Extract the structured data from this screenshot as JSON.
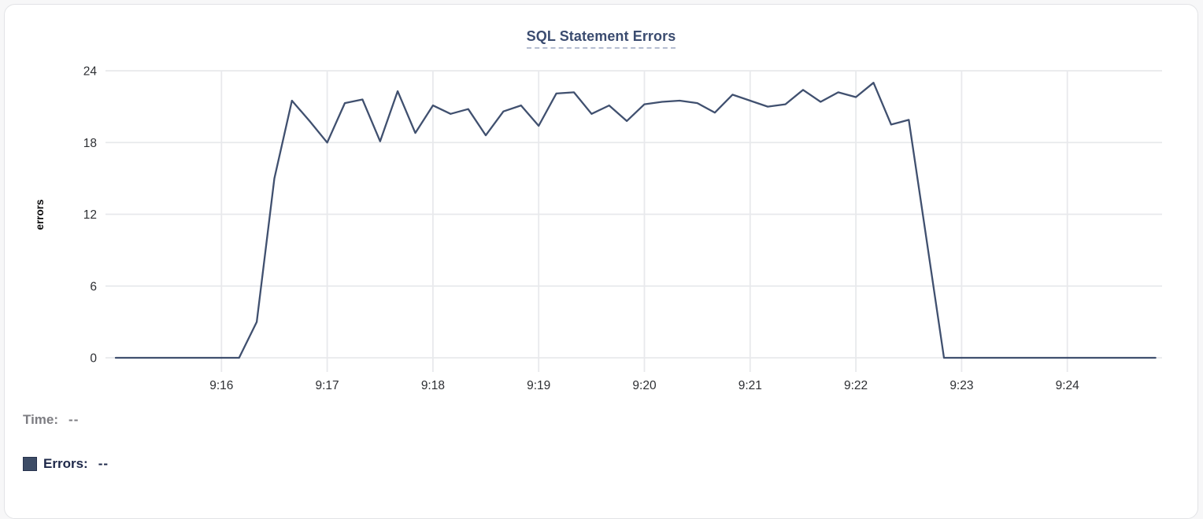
{
  "card": {
    "title": "SQL Statement Errors"
  },
  "legend": {
    "time_label": "Time:",
    "time_value": "--",
    "errors_label": "Errors:",
    "errors_value": "--",
    "swatch_color": "#3d4c66"
  },
  "colors": {
    "line": "#40506f",
    "grid": "#e8e9ec",
    "axis_text": "#2d2f33",
    "axis_title_text": "#0c0c0d",
    "title": "#3b4c70",
    "title_underline": "#b5bdd1",
    "muted_gray": "#7d7d82",
    "dark_navy": "#1e2849"
  },
  "chart_data": {
    "type": "line",
    "title": "SQL Statement Errors",
    "xlabel": "",
    "ylabel": "errors",
    "ylim": [
      0,
      24
    ],
    "y_ticks": [
      0,
      6,
      12,
      18,
      24
    ],
    "x_ticks": [
      "9:16",
      "9:17",
      "9:18",
      "9:19",
      "9:20",
      "9:21",
      "9:22",
      "9:23",
      "9:24"
    ],
    "grid": true,
    "legend_position": "bottom-left",
    "series": [
      {
        "name": "Errors",
        "start_time": "9:15:00",
        "interval_seconds": 10,
        "values": [
          0,
          0,
          0,
          0,
          0,
          0,
          0,
          0,
          3,
          15,
          21.5,
          19.8,
          18,
          21.3,
          21.6,
          18.1,
          22.3,
          18.8,
          21.1,
          20.4,
          20.8,
          18.6,
          20.6,
          21.1,
          19.4,
          22.1,
          22.2,
          20.4,
          21.1,
          19.8,
          21.2,
          21.4,
          21.5,
          21.3,
          20.5,
          22,
          21.5,
          21,
          21.2,
          22.4,
          21.4,
          22.2,
          21.8,
          23,
          19.5,
          19.9,
          10,
          0,
          0,
          0,
          0,
          0,
          0,
          0,
          0,
          0,
          0,
          0,
          0,
          0
        ]
      }
    ]
  }
}
